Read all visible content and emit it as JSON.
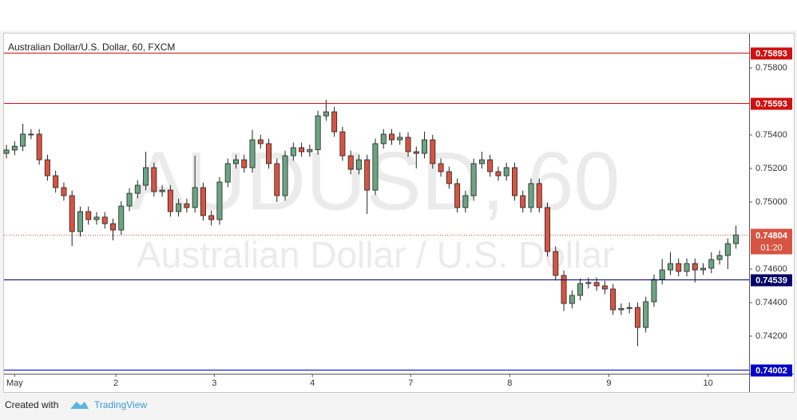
{
  "chart_data": {
    "type": "candlestick",
    "title": "Australian Dollar/U.S. Dollar, 60, FXCM",
    "watermark": "AUDUSD, 60",
    "watermark_subtitle": "Australian Dollar / U.S. Dollar",
    "up_color": "#6ba583",
    "down_color": "#d75442",
    "open": [
      0.7529,
      0.7531,
      0.75333,
      0.75405,
      0.75405,
      0.75252,
      0.75157,
      0.75086,
      0.75038,
      0.74824,
      0.74943,
      0.74895,
      0.7491,
      0.74871,
      0.74833,
      0.74976,
      0.75052,
      0.751,
      0.75205,
      0.75062,
      0.75071,
      0.74943,
      0.7499,
      0.74967,
      0.75086,
      0.74919,
      0.74895,
      0.75119,
      0.75229,
      0.75252,
      0.75205,
      0.75371,
      0.75348,
      0.75229,
      0.75038,
      0.75276,
      0.75324,
      0.753,
      0.75312,
      0.75514,
      0.75538,
      0.75419,
      0.75276,
      0.75195,
      0.75252,
      0.75071,
      0.75348,
      0.75405,
      0.75371,
      0.75386,
      0.753,
      0.7529,
      0.75371,
      0.75229,
      0.75181,
      0.7511,
      0.74967,
      0.75038,
      0.75229,
      0.75252,
      0.75181,
      0.75157,
      0.75205,
      0.75038,
      0.74967,
      0.7511,
      0.74967,
      0.74705,
      0.74562,
      0.74395,
      0.74443,
      0.74514,
      0.7452,
      0.745,
      0.74481,
      0.74357,
      0.74365,
      0.74371,
      0.74252,
      0.74405,
      0.74538,
      0.74595,
      0.74633,
      0.74586,
      0.74633,
      0.74595,
      0.74605,
      0.74657,
      0.74681,
      0.74752
    ],
    "high": [
      0.7534,
      0.75363,
      0.75467,
      0.75435,
      0.75435,
      0.75282,
      0.75187,
      0.75116,
      0.75068,
      0.74973,
      0.74973,
      0.7494,
      0.7494,
      0.74901,
      0.75006,
      0.75082,
      0.7513,
      0.753,
      0.75235,
      0.75101,
      0.75101,
      0.7502,
      0.7502,
      0.75276,
      0.75116,
      0.74949,
      0.75149,
      0.75259,
      0.75282,
      0.75282,
      0.7543,
      0.75401,
      0.75378,
      0.75259,
      0.75306,
      0.75354,
      0.75354,
      0.75342,
      0.75544,
      0.7561,
      0.75568,
      0.75449,
      0.75306,
      0.75282,
      0.75282,
      0.75378,
      0.75435,
      0.75435,
      0.75416,
      0.75416,
      0.7533,
      0.7542,
      0.75401,
      0.75259,
      0.75211,
      0.7514,
      0.75068,
      0.75259,
      0.753,
      0.75282,
      0.75211,
      0.75235,
      0.75235,
      0.75068,
      0.7514,
      0.7514,
      0.74997,
      0.74735,
      0.74592,
      0.74473,
      0.74544,
      0.7455,
      0.7455,
      0.7453,
      0.74511,
      0.74395,
      0.74401,
      0.74401,
      0.74435,
      0.74568,
      0.7466,
      0.747,
      0.74663,
      0.74663,
      0.74663,
      0.74635,
      0.747,
      0.74711,
      0.74782,
      0.7486
    ],
    "low": [
      0.7526,
      0.7528,
      0.75303,
      0.75375,
      0.75222,
      0.75127,
      0.75056,
      0.75008,
      0.74738,
      0.74794,
      0.74865,
      0.74865,
      0.74841,
      0.74771,
      0.74803,
      0.74946,
      0.75022,
      0.7507,
      0.75032,
      0.75032,
      0.74913,
      0.74913,
      0.74937,
      0.74937,
      0.74889,
      0.7486,
      0.74865,
      0.75089,
      0.75199,
      0.75175,
      0.75175,
      0.75318,
      0.75199,
      0.75,
      0.75008,
      0.75246,
      0.7527,
      0.7527,
      0.75282,
      0.75484,
      0.75389,
      0.75246,
      0.75165,
      0.75165,
      0.74929,
      0.75041,
      0.75318,
      0.75341,
      0.75341,
      0.7527,
      0.752,
      0.7526,
      0.75199,
      0.75151,
      0.7508,
      0.74937,
      0.74937,
      0.75008,
      0.75199,
      0.75151,
      0.75127,
      0.75127,
      0.75008,
      0.74937,
      0.74937,
      0.74937,
      0.74675,
      0.74532,
      0.7435,
      0.74365,
      0.74413,
      0.74484,
      0.7447,
      0.74451,
      0.74327,
      0.74327,
      0.74335,
      0.7414,
      0.74222,
      0.74375,
      0.74508,
      0.74565,
      0.74556,
      0.74556,
      0.7452,
      0.74565,
      0.74575,
      0.74627,
      0.746,
      0.74722
    ],
    "close": [
      0.7531,
      0.75333,
      0.75405,
      0.75405,
      0.75252,
      0.75157,
      0.75086,
      0.75038,
      0.74824,
      0.74943,
      0.74895,
      0.7491,
      0.74871,
      0.74833,
      0.74976,
      0.75052,
      0.751,
      0.75205,
      0.75062,
      0.75071,
      0.74943,
      0.7499,
      0.74967,
      0.75086,
      0.74919,
      0.74895,
      0.75119,
      0.75229,
      0.75252,
      0.75205,
      0.75371,
      0.75348,
      0.75229,
      0.75038,
      0.75276,
      0.75324,
      0.753,
      0.75312,
      0.75514,
      0.75538,
      0.75419,
      0.75276,
      0.75195,
      0.75252,
      0.75071,
      0.75348,
      0.75405,
      0.75371,
      0.75386,
      0.753,
      0.7529,
      0.75371,
      0.75229,
      0.75181,
      0.7511,
      0.74967,
      0.75038,
      0.75229,
      0.75252,
      0.75181,
      0.75157,
      0.75205,
      0.75038,
      0.74967,
      0.7511,
      0.74967,
      0.74705,
      0.74562,
      0.74395,
      0.74443,
      0.74514,
      0.7452,
      0.745,
      0.74481,
      0.74357,
      0.74365,
      0.74371,
      0.74252,
      0.74405,
      0.74538,
      0.74595,
      0.74633,
      0.74586,
      0.74633,
      0.74595,
      0.74605,
      0.74657,
      0.74681,
      0.74752,
      0.74804
    ],
    "xlim": [
      -0.3,
      90.6
    ],
    "xticks": [
      {
        "value": 1,
        "label": "May"
      },
      {
        "value": 13.35,
        "label": "2"
      },
      {
        "value": 25.35,
        "label": "3"
      },
      {
        "value": 37.33,
        "label": "4"
      },
      {
        "value": 49.32,
        "label": "7"
      },
      {
        "value": 61.4,
        "label": "8"
      },
      {
        "value": 73.5,
        "label": "9"
      },
      {
        "value": 85.6,
        "label": "10"
      }
    ],
    "ylim": [
      0.73976,
      0.76005
    ],
    "yticks": [
      {
        "value": 0.758,
        "label": "0.75800"
      },
      {
        "value": 0.754,
        "label": "0.75400"
      },
      {
        "value": 0.752,
        "label": "0.75200"
      },
      {
        "value": 0.75,
        "label": "0.75000"
      },
      {
        "value": 0.746,
        "label": "0.74600"
      },
      {
        "value": 0.744,
        "label": "0.74400"
      },
      {
        "value": 0.742,
        "label": "0.74200"
      }
    ],
    "grid": false,
    "levels": [
      {
        "value": 0.75893,
        "color": "#d01010"
      },
      {
        "value": 0.75593,
        "color": "#d01010"
      },
      {
        "value": 0.74539,
        "color": "#000066"
      },
      {
        "value": 0.74002,
        "color": "#0000c8"
      }
    ],
    "last_price": {
      "value": 0.74804,
      "countdown": "01:20",
      "color": "#d75442"
    }
  },
  "footer": {
    "text": "Created with",
    "brand": "TradingView"
  }
}
